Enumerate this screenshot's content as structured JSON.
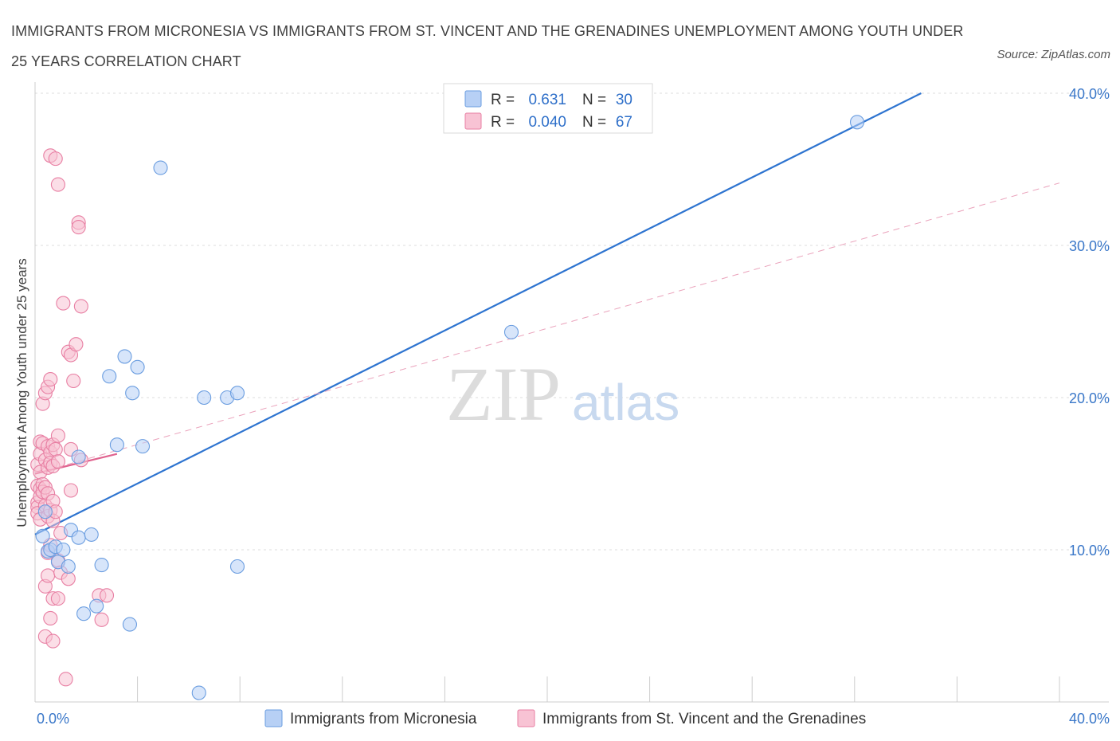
{
  "chart_data": {
    "type": "scatter",
    "title": "IMMIGRANTS FROM MICRONESIA VS IMMIGRANTS FROM ST. VINCENT AND THE GRENADINES UNEMPLOYMENT AMONG YOUTH UNDER 25 YEARS CORRELATION CHART",
    "source": "Source: ZipAtlas.com",
    "xlabel": "",
    "ylabel": "Unemployment Among Youth under 25 years",
    "xlim": [
      0,
      40
    ],
    "ylim": [
      0,
      40
    ],
    "x_tick_labels": [
      "0.0%",
      "40.0%"
    ],
    "y_ticks": [
      {
        "value": 10,
        "label": "10.0%"
      },
      {
        "value": 20,
        "label": "20.0%"
      },
      {
        "value": 30,
        "label": "30.0%"
      },
      {
        "value": 40,
        "label": "40.0%"
      }
    ],
    "watermark": "ZIPatlas",
    "series": [
      {
        "name": "Immigrants from Micronesia",
        "color": "#6a9de0",
        "fill": "#b7d0f5",
        "R": "0.631",
        "N": "30",
        "trend": {
          "x": [
            0,
            34.6
          ],
          "y": [
            11.0,
            40.0
          ]
        },
        "points": [
          [
            0.3,
            10.9
          ],
          [
            0.5,
            9.9
          ],
          [
            0.6,
            10.0
          ],
          [
            0.8,
            10.2
          ],
          [
            0.9,
            9.2
          ],
          [
            1.1,
            10.0
          ],
          [
            1.3,
            8.9
          ],
          [
            1.4,
            11.3
          ],
          [
            1.7,
            16.1
          ],
          [
            1.7,
            10.8
          ],
          [
            1.9,
            5.8
          ],
          [
            2.2,
            11.0
          ],
          [
            2.4,
            6.3
          ],
          [
            2.6,
            9.0
          ],
          [
            2.9,
            21.4
          ],
          [
            3.2,
            16.9
          ],
          [
            3.5,
            22.7
          ],
          [
            3.7,
            5.1
          ],
          [
            3.8,
            20.3
          ],
          [
            4.0,
            22.0
          ],
          [
            4.2,
            16.8
          ],
          [
            4.9,
            35.1
          ],
          [
            6.4,
            0.6
          ],
          [
            6.6,
            20.0
          ],
          [
            7.5,
            20.0
          ],
          [
            7.9,
            20.3
          ],
          [
            7.9,
            8.9
          ],
          [
            18.6,
            24.3
          ],
          [
            32.1,
            38.1
          ],
          [
            0.4,
            12.5
          ]
        ]
      },
      {
        "name": "Immigrants from St. Vincent and the Grenadines",
        "color": "#e87fa3",
        "fill": "#f8c3d4",
        "R": "0.040",
        "N": "67",
        "trend": {
          "x": [
            0,
            3.2
          ],
          "y": [
            15.0,
            16.3
          ]
        },
        "trend_extended": {
          "x": [
            0,
            40
          ],
          "y": [
            15.0,
            34.1
          ]
        },
        "points": [
          [
            0.1,
            15.6
          ],
          [
            0.1,
            14.2
          ],
          [
            0.1,
            13.1
          ],
          [
            0.1,
            12.8
          ],
          [
            0.1,
            12.4
          ],
          [
            0.2,
            17.1
          ],
          [
            0.2,
            16.3
          ],
          [
            0.2,
            15.1
          ],
          [
            0.2,
            14.0
          ],
          [
            0.2,
            13.5
          ],
          [
            0.2,
            12.0
          ],
          [
            0.3,
            19.6
          ],
          [
            0.3,
            17.0
          ],
          [
            0.3,
            14.3
          ],
          [
            0.3,
            13.8
          ],
          [
            0.4,
            20.3
          ],
          [
            0.4,
            15.9
          ],
          [
            0.4,
            14.1
          ],
          [
            0.4,
            12.9
          ],
          [
            0.4,
            4.3
          ],
          [
            0.4,
            7.6
          ],
          [
            0.5,
            20.7
          ],
          [
            0.5,
            16.8
          ],
          [
            0.5,
            15.4
          ],
          [
            0.5,
            13.7
          ],
          [
            0.5,
            12.2
          ],
          [
            0.5,
            9.8
          ],
          [
            0.5,
            8.3
          ],
          [
            0.6,
            21.2
          ],
          [
            0.6,
            16.4
          ],
          [
            0.6,
            15.7
          ],
          [
            0.6,
            12.6
          ],
          [
            0.6,
            10.3
          ],
          [
            0.6,
            5.5
          ],
          [
            0.6,
            35.9
          ],
          [
            0.7,
            16.9
          ],
          [
            0.7,
            15.5
          ],
          [
            0.7,
            13.2
          ],
          [
            0.7,
            11.9
          ],
          [
            0.7,
            6.8
          ],
          [
            0.7,
            4.0
          ],
          [
            0.8,
            35.7
          ],
          [
            0.8,
            16.6
          ],
          [
            0.8,
            12.5
          ],
          [
            0.9,
            34.0
          ],
          [
            0.9,
            17.5
          ],
          [
            0.9,
            15.8
          ],
          [
            0.9,
            9.3
          ],
          [
            0.9,
            6.8
          ],
          [
            1.0,
            11.1
          ],
          [
            1.0,
            8.5
          ],
          [
            1.1,
            26.2
          ],
          [
            1.2,
            1.5
          ],
          [
            1.3,
            23.0
          ],
          [
            1.3,
            8.1
          ],
          [
            1.4,
            22.8
          ],
          [
            1.4,
            16.6
          ],
          [
            1.4,
            13.9
          ],
          [
            1.5,
            21.1
          ],
          [
            1.6,
            23.5
          ],
          [
            1.7,
            31.5
          ],
          [
            1.7,
            31.2
          ],
          [
            1.8,
            26.0
          ],
          [
            1.8,
            15.9
          ],
          [
            2.5,
            7.0
          ],
          [
            2.6,
            5.4
          ],
          [
            2.8,
            7.0
          ]
        ]
      }
    ]
  }
}
